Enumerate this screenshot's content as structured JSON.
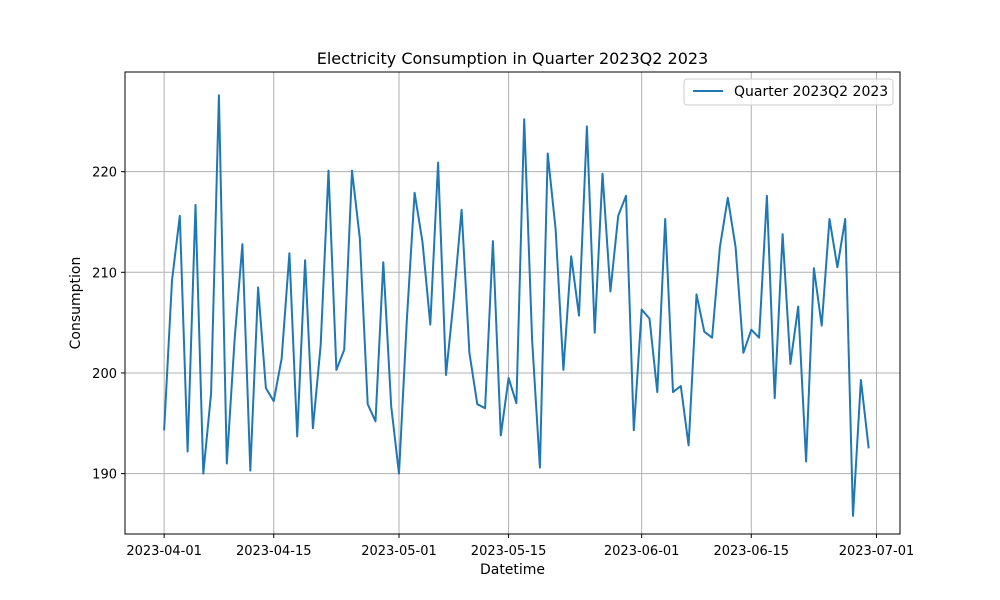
{
  "chart_data": {
    "type": "line",
    "title": "Electricity Consumption in Quarter 2023Q2 2023",
    "xlabel": "Datetime",
    "ylabel": "Consumption",
    "xlim": [
      "2023-03-27",
      "2023-07-04"
    ],
    "ylim": [
      184,
      229.9
    ],
    "x_ticks": [
      "2023-04-01",
      "2023-04-15",
      "2023-05-01",
      "2023-05-15",
      "2023-06-01",
      "2023-06-15",
      "2023-07-01"
    ],
    "y_ticks": [
      190,
      200,
      210,
      220
    ],
    "grid": true,
    "legend_position": "top-right",
    "series": [
      {
        "name": "Quarter 2023Q2 2023",
        "color": "#1f77b4",
        "x": [
          "2023-04-01",
          "2023-04-02",
          "2023-04-03",
          "2023-04-04",
          "2023-04-05",
          "2023-04-06",
          "2023-04-07",
          "2023-04-08",
          "2023-04-09",
          "2023-04-10",
          "2023-04-11",
          "2023-04-12",
          "2023-04-13",
          "2023-04-14",
          "2023-04-15",
          "2023-04-16",
          "2023-04-17",
          "2023-04-18",
          "2023-04-19",
          "2023-04-20",
          "2023-04-21",
          "2023-04-22",
          "2023-04-23",
          "2023-04-24",
          "2023-04-25",
          "2023-04-26",
          "2023-04-27",
          "2023-04-28",
          "2023-04-29",
          "2023-04-30",
          "2023-05-01",
          "2023-05-02",
          "2023-05-03",
          "2023-05-04",
          "2023-05-05",
          "2023-05-06",
          "2023-05-07",
          "2023-05-08",
          "2023-05-09",
          "2023-05-10",
          "2023-05-11",
          "2023-05-12",
          "2023-05-13",
          "2023-05-14",
          "2023-05-15",
          "2023-05-16",
          "2023-05-17",
          "2023-05-18",
          "2023-05-19",
          "2023-05-20",
          "2023-05-21",
          "2023-05-22",
          "2023-05-23",
          "2023-05-24",
          "2023-05-25",
          "2023-05-26",
          "2023-05-27",
          "2023-05-28",
          "2023-05-29",
          "2023-05-30",
          "2023-05-31",
          "2023-06-01",
          "2023-06-02",
          "2023-06-03",
          "2023-06-04",
          "2023-06-05",
          "2023-06-06",
          "2023-06-07",
          "2023-06-08",
          "2023-06-09",
          "2023-06-10",
          "2023-06-11",
          "2023-06-12",
          "2023-06-13",
          "2023-06-14",
          "2023-06-15",
          "2023-06-16",
          "2023-06-17",
          "2023-06-18",
          "2023-06-19",
          "2023-06-20",
          "2023-06-21",
          "2023-06-22",
          "2023-06-23",
          "2023-06-24",
          "2023-06-25",
          "2023-06-26",
          "2023-06-27",
          "2023-06-28",
          "2023-06-29",
          "2023-06-30"
        ],
        "values": [
          194.3,
          209.2,
          215.6,
          192.2,
          216.7,
          190.0,
          198.0,
          227.6,
          191.0,
          203.3,
          212.8,
          190.3,
          208.5,
          198.5,
          197.2,
          201.4,
          211.9,
          193.7,
          211.2,
          194.5,
          202.8,
          220.1,
          200.3,
          202.3,
          220.1,
          213.4,
          196.9,
          195.2,
          211.0,
          196.7,
          190.0,
          205.2,
          217.9,
          213.0,
          204.8,
          220.9,
          199.8,
          207.4,
          216.2,
          202.0,
          196.9,
          196.5,
          213.1,
          193.8,
          199.5,
          197.0,
          225.2,
          203.3,
          190.6,
          221.8,
          214.3,
          200.3,
          211.6,
          205.7,
          224.5,
          204.0,
          219.8,
          208.1,
          215.6,
          217.6,
          194.3,
          206.3,
          205.4,
          198.1,
          215.3,
          198.1,
          198.7,
          192.8,
          207.8,
          204.1,
          203.5,
          212.5,
          217.4,
          212.5,
          202.0,
          204.3,
          203.5,
          217.6,
          197.5,
          213.8,
          200.9,
          206.6,
          191.2,
          210.4,
          204.7,
          215.3,
          210.5,
          215.3,
          185.8,
          199.3,
          192.5
        ]
      }
    ]
  }
}
